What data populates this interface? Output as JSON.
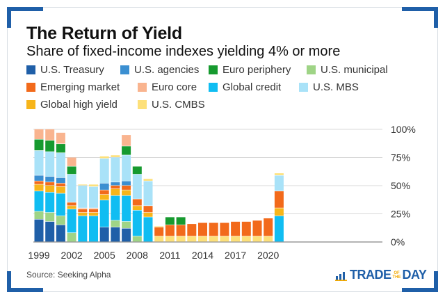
{
  "header": {
    "title": "The Return of Yield",
    "subtitle": "Share of fixed-income indexes yielding 4% or more"
  },
  "footer": {
    "source": "Source: Seeking Alpha",
    "brand_trade": "TRADE",
    "brand_of": "OF",
    "brand_the": "THE",
    "brand_day": "DAY"
  },
  "colors": {
    "accent": "#1f5fa8",
    "brand_gold": "#f2a900"
  },
  "icons": {
    "brand_logo": "bar-chart-icon"
  },
  "chart_data": {
    "type": "bar",
    "stacked": true,
    "title": "The Return of Yield",
    "subtitle": "Share of fixed-income indexes yielding 4% or more",
    "xlabel": "",
    "ylabel": "",
    "ylim": [
      0,
      100
    ],
    "yticks": [
      0,
      25,
      50,
      75,
      100
    ],
    "ytick_labels": [
      "0%",
      "25%",
      "50%",
      "75%",
      "100%"
    ],
    "y_axis_position": "right",
    "grid": true,
    "legend_position": "top",
    "categories": [
      "1999",
      "2000",
      "2001",
      "2002",
      "2003",
      "2004",
      "2005",
      "2006",
      "2007",
      "2008",
      "2009",
      "2010",
      "2011",
      "2012",
      "2013",
      "2014",
      "2015",
      "2016",
      "2017",
      "2018",
      "2019",
      "2020",
      "2021",
      "2022"
    ],
    "xtick_labels": [
      "1999",
      "2002",
      "2005",
      "2008",
      "2011",
      "2014",
      "2017",
      "2020"
    ],
    "series": [
      {
        "name": "U.S. Treasury",
        "color": "#1f5fa8",
        "values": [
          20,
          18,
          15,
          0,
          0,
          0,
          13,
          13,
          12,
          0,
          0,
          0,
          0,
          0,
          0,
          0,
          0,
          0,
          0,
          0,
          0,
          0,
          0,
          0
        ]
      },
      {
        "name": "U.S. municipal",
        "color": "#9fd486",
        "values": [
          7,
          8,
          8,
          8,
          0,
          0,
          0,
          6,
          6,
          5,
          0,
          0,
          0,
          0,
          0,
          0,
          0,
          0,
          0,
          0,
          0,
          0,
          0,
          0
        ]
      },
      {
        "name": "Global credit",
        "color": "#10bdf2",
        "values": [
          18,
          18,
          20,
          21,
          23,
          23,
          24,
          22,
          23,
          23,
          22,
          0,
          0,
          0,
          0,
          0,
          0,
          0,
          0,
          0,
          0,
          0,
          23,
          0
        ]
      },
      {
        "name": "U.S. CMBS",
        "color": "#fde07a",
        "values": [
          0,
          0,
          0,
          0,
          0,
          0,
          0,
          0,
          0,
          0,
          0,
          5,
          5,
          5,
          5,
          5,
          5,
          5,
          5,
          5,
          5,
          5,
          0,
          0
        ]
      },
      {
        "name": "Global high yield",
        "color": "#f7b51a",
        "values": [
          6,
          6,
          6,
          3,
          3,
          3,
          5,
          6,
          5,
          4,
          4,
          0,
          0,
          0,
          0,
          0,
          0,
          0,
          0,
          0,
          0,
          0,
          7,
          0
        ]
      },
      {
        "name": "Emerging market",
        "color": "#f26a1b",
        "values": [
          3,
          3,
          3,
          3,
          3,
          3,
          4,
          3,
          4,
          6,
          6,
          8,
          10,
          10,
          11,
          12,
          12,
          12,
          13,
          13,
          14,
          16,
          15,
          0
        ]
      },
      {
        "name": "U.S. agencies",
        "color": "#3b8fd1",
        "values": [
          5,
          5,
          5,
          0,
          0,
          0,
          6,
          3,
          4,
          0,
          0,
          0,
          0,
          0,
          0,
          0,
          0,
          0,
          0,
          0,
          0,
          0,
          0,
          0
        ]
      },
      {
        "name": "Euro core",
        "color": "#f9b48f",
        "values": [
          0,
          0,
          0,
          0,
          1,
          1,
          0,
          0,
          0,
          0,
          0,
          0,
          0,
          0,
          0,
          0,
          0,
          0,
          0,
          0,
          0,
          0,
          0,
          0
        ]
      },
      {
        "name": "U.S. MBS",
        "color": "#a9e2f8",
        "values": [
          22,
          22,
          22,
          25,
          20,
          19,
          22,
          22,
          23,
          22,
          22,
          0,
          0,
          0,
          0,
          0,
          0,
          0,
          0,
          0,
          0,
          0,
          14,
          0
        ]
      },
      {
        "name": "Euro periphery",
        "color": "#169a2f",
        "values": [
          10,
          10,
          8,
          7,
          0,
          0,
          0,
          0,
          8,
          7,
          0,
          0,
          7,
          7,
          0,
          0,
          0,
          0,
          0,
          0,
          0,
          0,
          0,
          0
        ]
      },
      {
        "name": "Euro core",
        "color": "#f9b48f",
        "values": [
          9,
          10,
          10,
          8,
          0,
          0,
          0,
          0,
          10,
          0,
          0,
          0,
          0,
          0,
          0,
          0,
          0,
          0,
          0,
          0,
          0,
          0,
          0,
          0
        ]
      },
      {
        "name": "U.S. CMBS",
        "color": "#fde07a",
        "values": [
          0,
          0,
          0,
          0,
          1,
          2,
          2,
          2,
          0,
          0,
          2,
          1,
          0,
          0,
          0,
          0,
          0,
          0,
          0,
          0,
          0,
          0,
          2,
          0
        ]
      }
    ]
  },
  "legend": [
    {
      "label": "U.S. Treasury",
      "color": "#1f5fa8"
    },
    {
      "label": "U.S. agencies",
      "color": "#3b8fd1"
    },
    {
      "label": "Euro periphery",
      "color": "#169a2f"
    },
    {
      "label": "U.S. municipal",
      "color": "#9fd486"
    },
    {
      "label": "Emerging market",
      "color": "#f26a1b"
    },
    {
      "label": "Euro core",
      "color": "#f9b48f"
    },
    {
      "label": "Global credit",
      "color": "#10bdf2"
    },
    {
      "label": "U.S. MBS",
      "color": "#a9e2f8"
    },
    {
      "label": "Global high yield",
      "color": "#f7b51a"
    },
    {
      "label": "U.S. CMBS",
      "color": "#fde07a"
    }
  ]
}
